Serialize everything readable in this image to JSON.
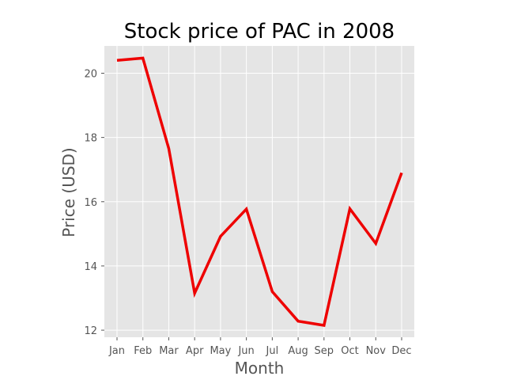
{
  "chart_data": {
    "type": "line",
    "title": "Stock price of PAC in 2008",
    "xlabel": "Month",
    "ylabel": "Price (USD)",
    "categories": [
      "Jan",
      "Feb",
      "Mar",
      "Apr",
      "May",
      "Jun",
      "Jul",
      "Aug",
      "Sep",
      "Oct",
      "Nov",
      "Dec"
    ],
    "series": [
      {
        "values": [
          20.4,
          20.47,
          17.65,
          13.15,
          14.92,
          15.77,
          13.2,
          12.28,
          12.15,
          15.78,
          14.7,
          16.9
        ],
        "color": "#ee0000"
      }
    ],
    "ylim": [
      11.78,
      20.85
    ],
    "yticks": [
      12,
      14,
      16,
      18,
      20
    ],
    "grid": true,
    "background": "#e5e5e5"
  }
}
